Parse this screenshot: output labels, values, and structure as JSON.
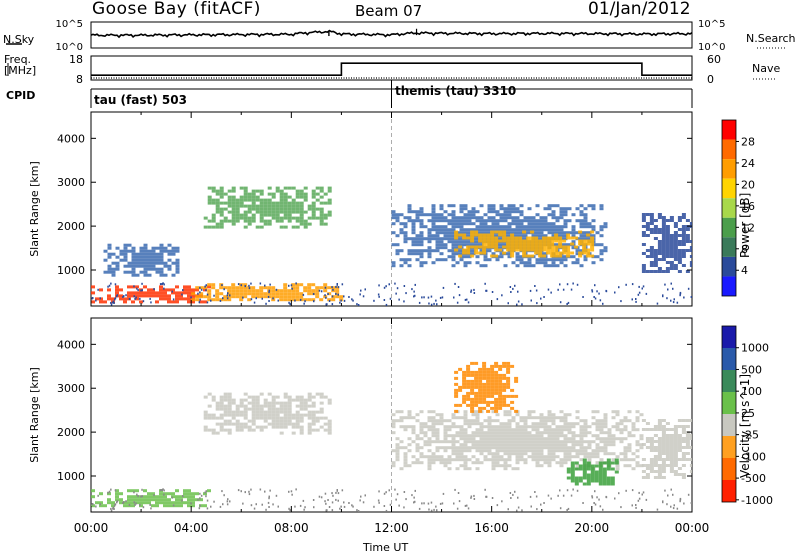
{
  "header": {
    "station": "Goose Bay (fitACF)",
    "beam": "Beam 07",
    "date": "01/Jan/2012"
  },
  "left_labels": {
    "nsky": "N.Sky",
    "freq_line1": "Freq.",
    "freq_line2": "[MHz]",
    "cpid": "CPID"
  },
  "right_labels": {
    "nsearch": "N.Search",
    "nave": "Nave"
  },
  "nsky_axis": {
    "top": "10^5",
    "bottom": "10^0"
  },
  "freq_axis": {
    "left_ticks": [
      "18",
      "8"
    ],
    "right_ticks": [
      "60",
      "0"
    ]
  },
  "cpid_segments": [
    {
      "label": "tau (fast) 503",
      "start": "00:00",
      "end": "12:00"
    },
    {
      "label": "themis (tau) 3310",
      "start": "12:00",
      "end": "24:00"
    }
  ],
  "x_axis": {
    "label": "Time UT",
    "ticks": [
      "00:00",
      "04:00",
      "08:00",
      "12:00",
      "16:00",
      "20:00",
      "00:00"
    ]
  },
  "chart_data": [
    {
      "type": "line",
      "panel": "N.Sky / N.Search",
      "xlabel": "Time UT",
      "ylabel": "N.Sky",
      "y_scale": "log",
      "ylim": [
        1,
        100000
      ],
      "x_hours": [
        0,
        2,
        4,
        6,
        8,
        9.5,
        10,
        12,
        13,
        14,
        16,
        18,
        20,
        22,
        24
      ],
      "values": [
        300,
        300,
        350,
        400,
        450,
        1500,
        500,
        350,
        800,
        700,
        600,
        650,
        600,
        500,
        600
      ]
    },
    {
      "type": "line",
      "panel": "Frequency / Nave",
      "series": [
        {
          "name": "Freq. [MHz]",
          "x_hours": [
            0,
            10,
            10,
            22,
            22,
            24
          ],
          "values": [
            10,
            10,
            15,
            15,
            10,
            10
          ]
        },
        {
          "name": "Nave",
          "x_hours": [
            0,
            24
          ],
          "values": [
            5,
            5
          ]
        }
      ],
      "ylim_left": [
        8,
        18
      ],
      "ylim_right": [
        0,
        60
      ]
    },
    {
      "type": "heatmap",
      "panel": "Power",
      "xlabel": "Time UT",
      "ylabel": "Slant Range [km]",
      "ylim": [
        180,
        4600
      ],
      "yticks": [
        1000,
        2000,
        3000,
        4000
      ],
      "colorbar_label": "Power [dB]",
      "colorbar_ticks": [
        "28",
        "24",
        "20",
        "16",
        "12",
        "8",
        "4"
      ],
      "colorbar_colors": [
        "#ff0000",
        "#ff6a00",
        "#ff9d00",
        "#ffd400",
        "#a8d84a",
        "#4b9e4b",
        "#3a7a5a",
        "#2a4a9a",
        "#1a1aff"
      ],
      "regions": [
        {
          "t0": 0.0,
          "t1": 4.8,
          "r0": 300,
          "r1": 650,
          "level": "strong",
          "color": "#ff3000"
        },
        {
          "t0": 0.5,
          "t1": 3.5,
          "r0": 900,
          "r1": 1600,
          "level": "weak",
          "color": "#3a6ab0"
        },
        {
          "t0": 4.5,
          "t1": 9.5,
          "r0": 2000,
          "r1": 2900,
          "level": "moderate",
          "color": "#58a858"
        },
        {
          "t0": 4.0,
          "t1": 10.0,
          "r0": 300,
          "r1": 700,
          "level": "moderate",
          "color": "#ff9d00"
        },
        {
          "t0": 12.0,
          "t1": 20.5,
          "r0": 1100,
          "r1": 2500,
          "level": "moderate",
          "color": "#3a6ab0"
        },
        {
          "t0": 14.5,
          "t1": 20.0,
          "r0": 1300,
          "r1": 1900,
          "level": "strong",
          "color": "#ffb000"
        },
        {
          "t0": 22.0,
          "t1": 24.0,
          "r0": 1000,
          "r1": 2300,
          "level": "weak",
          "color": "#2a4a9a"
        }
      ]
    },
    {
      "type": "heatmap",
      "panel": "Velocity",
      "xlabel": "Time UT",
      "ylabel": "Slant Range [km]",
      "ylim": [
        180,
        4600
      ],
      "yticks": [
        1000,
        2000,
        3000,
        4000
      ],
      "colorbar_label": "Velocity [m s^-1]",
      "colorbar_ticks": [
        "1000",
        "500",
        "100",
        "25",
        "-25",
        "-100",
        "-500",
        "-1000"
      ],
      "colorbar_colors": [
        "#1a1aaa",
        "#2a5aaa",
        "#3a8a5a",
        "#6ac04a",
        "#c8c8c0",
        "#ffa020",
        "#ff6a00",
        "#ff2000"
      ],
      "regions": [
        {
          "t0": 0.0,
          "t1": 4.8,
          "r0": 300,
          "r1": 700,
          "level": "slow",
          "color": "#6ac04a"
        },
        {
          "t0": 4.5,
          "t1": 9.5,
          "r0": 2000,
          "r1": 2900,
          "level": "near-zero",
          "color": "#c8c8c0"
        },
        {
          "t0": 12.0,
          "t1": 22.0,
          "r0": 1200,
          "r1": 2500,
          "level": "near-zero",
          "color": "#c8c8c0"
        },
        {
          "t0": 14.5,
          "t1": 17.0,
          "r0": 2500,
          "r1": 3600,
          "level": "negative",
          "color": "#ff8a00"
        },
        {
          "t0": 19.0,
          "t1": 21.0,
          "r0": 800,
          "r1": 1400,
          "level": "positive",
          "color": "#3aa03a"
        },
        {
          "t0": 22.0,
          "t1": 24.0,
          "r0": 1000,
          "r1": 2300,
          "level": "near-zero",
          "color": "#c8c8c0"
        }
      ]
    }
  ]
}
